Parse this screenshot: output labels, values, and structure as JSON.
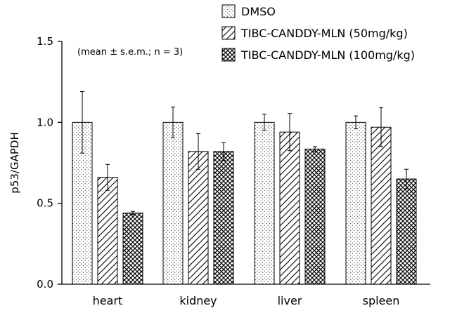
{
  "chart_data": {
    "type": "bar",
    "categories": [
      "heart",
      "kidney",
      "liver",
      "spleen"
    ],
    "series": [
      {
        "name": "DMSO",
        "values": [
          1.0,
          1.0,
          1.0,
          1.0
        ],
        "errors": [
          0.19,
          0.095,
          0.05,
          0.04
        ],
        "pattern": "dots"
      },
      {
        "name": "TIBC-CANDDY-MLN (50mg/kg)",
        "values": [
          0.66,
          0.82,
          0.94,
          0.97
        ],
        "errors": [
          0.08,
          0.11,
          0.115,
          0.12
        ],
        "pattern": "diagonal"
      },
      {
        "name": "TIBC-CANDDY-MLN (100mg/kg)",
        "values": [
          0.44,
          0.82,
          0.835,
          0.65
        ],
        "errors": [
          0.01,
          0.055,
          0.015,
          0.06
        ],
        "pattern": "crosshatch"
      }
    ],
    "title": "",
    "xlabel": "",
    "ylabel": "p53/GAPDH",
    "ylim": [
      0,
      1.5
    ],
    "yticks": [
      0.0,
      0.5,
      1.0,
      1.5
    ],
    "ytick_labels": [
      "0.0",
      "0.5",
      "1.0",
      "1.5"
    ],
    "annotation": "(mean ± s.e.m.; n = 3)",
    "legend_position": "top-right",
    "grid": false
  }
}
